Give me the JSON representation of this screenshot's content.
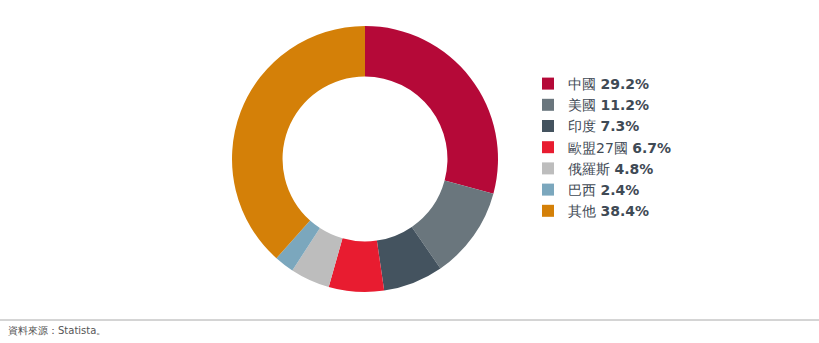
{
  "chart_data": {
    "type": "pie",
    "categories": [
      "中國",
      "美國",
      "印度",
      "歐盟27國",
      "俄羅斯",
      "巴西",
      "其他"
    ],
    "values": [
      29.2,
      11.2,
      7.3,
      6.7,
      4.8,
      2.4,
      38.4
    ],
    "value_labels": [
      "29.2%",
      "11.2%",
      "7.3%",
      "6.7%",
      "4.8%",
      "2.4%",
      "38.4%"
    ],
    "colors": [
      "#b50938",
      "#6a767d",
      "#44535f",
      "#e81c30",
      "#bdbdbd",
      "#7ba7bd",
      "#d48008"
    ],
    "legend": "right",
    "annotations": [
      "資料來源：Statista。"
    ]
  }
}
